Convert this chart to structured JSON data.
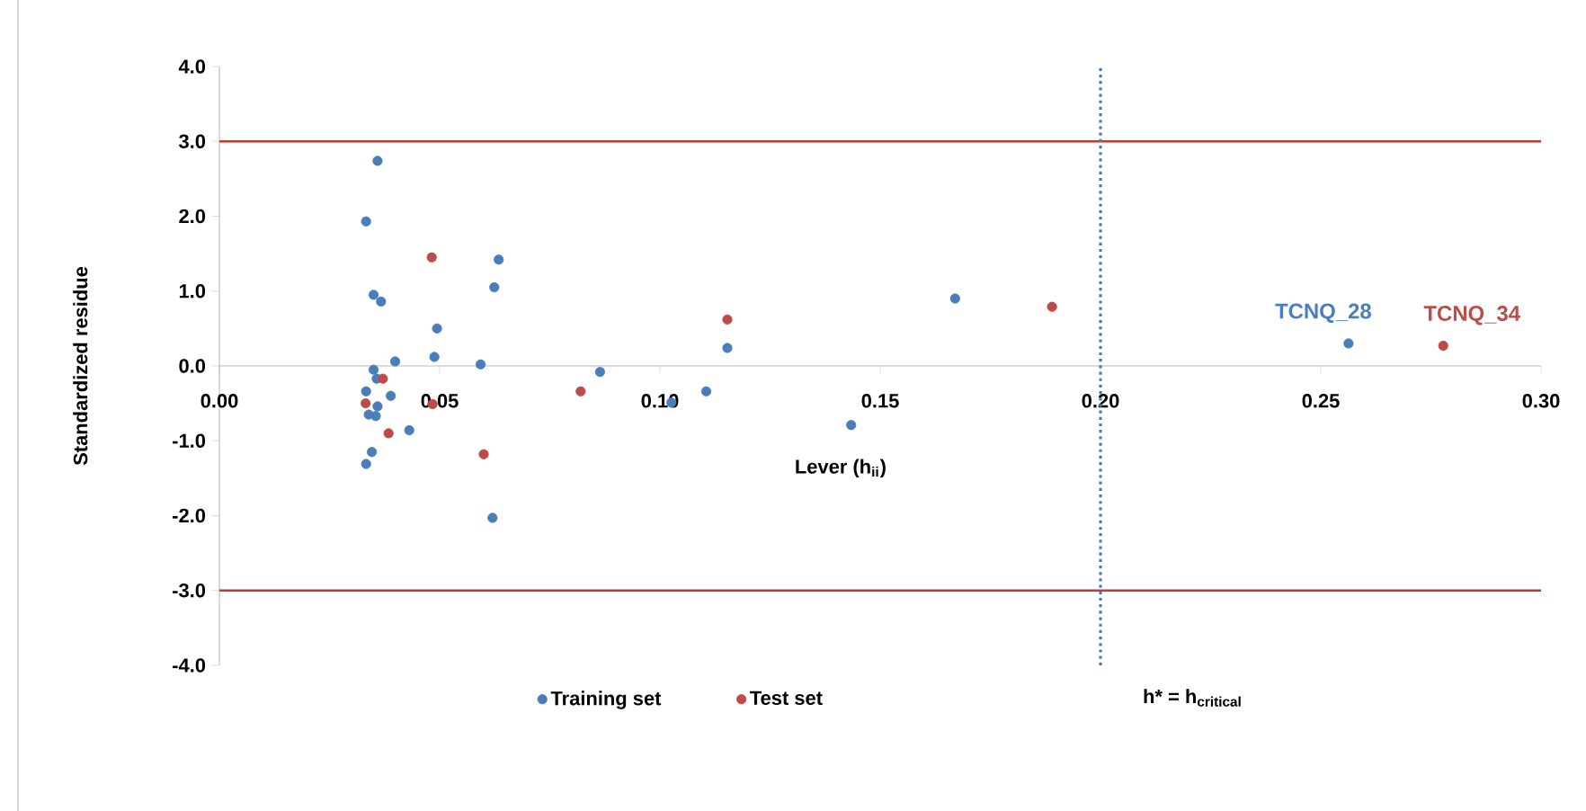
{
  "chart_data": {
    "type": "scatter",
    "xlabel": "Lever (h$_{ii}$)",
    "ylabel": "Standardized residue",
    "series": [
      {
        "name": "Training set",
        "color": "#4a7ebb",
        "x": [
          0.0359,
          0.0333,
          0.035,
          0.0367,
          0.0494,
          0.0488,
          0.0399,
          0.0593,
          0.0634,
          0.0624,
          0.035,
          0.0357,
          0.0333,
          0.0389,
          0.0359,
          0.0339,
          0.0355,
          0.0431,
          0.0346,
          0.0333,
          0.062,
          0.0864,
          0.1026,
          0.1105,
          0.1153,
          0.1434,
          0.167,
          0.2563
        ],
        "values": [
          2.74,
          1.93,
          0.95,
          0.86,
          0.5,
          0.12,
          0.06,
          0.02,
          1.42,
          1.05,
          -0.05,
          -0.17,
          -0.34,
          -0.4,
          -0.54,
          -0.65,
          -0.67,
          -0.86,
          -1.15,
          -1.31,
          -2.03,
          -0.08,
          -0.49,
          -0.34,
          0.24,
          -0.79,
          0.9,
          0.3
        ]
      },
      {
        "name": "Test set",
        "color": "#be4b48",
        "x": [
          0.0482,
          0.0371,
          0.0332,
          0.0484,
          0.0384,
          0.06,
          0.082,
          0.1153,
          0.189,
          0.2778
        ],
        "values": [
          1.45,
          -0.17,
          -0.5,
          -0.51,
          -0.9,
          -1.18,
          -0.34,
          0.62,
          0.79,
          0.27
        ]
      }
    ],
    "xlim": [
      0,
      0.3
    ],
    "xticks": [
      {
        "value": 0,
        "label": "0.00"
      },
      {
        "value": 0.05,
        "label": "0.05"
      },
      {
        "value": 0.1,
        "label": "0.10"
      },
      {
        "value": 0.15,
        "label": "0.15"
      },
      {
        "value": 0.2,
        "label": "0.20"
      },
      {
        "value": 0.25,
        "label": "0.25"
      },
      {
        "value": 0.3,
        "label": "0.30"
      }
    ],
    "ylim": [
      -4,
      4
    ],
    "yticks": [
      {
        "value": -4,
        "label": "-4.0"
      },
      {
        "value": -3,
        "label": "-3.0"
      },
      {
        "value": -2,
        "label": "-2.0"
      },
      {
        "value": -1,
        "label": "-1.0"
      },
      {
        "value": 0,
        "label": "0.0"
      },
      {
        "value": 1,
        "label": "1.0"
      },
      {
        "value": 2,
        "label": "2.0"
      },
      {
        "value": 3,
        "label": "3.0"
      },
      {
        "value": 4,
        "label": "4.0"
      }
    ],
    "ref_lines": [
      {
        "axis": "y",
        "value": 3,
        "color": "#c0392b",
        "line_style": "solid"
      },
      {
        "axis": "y",
        "value": -3,
        "color": "#c0392b",
        "line_style": "solid"
      },
      {
        "axis": "x",
        "value": 0.2,
        "color": "#4a7ebb",
        "line_style": "dotted",
        "label": "h* = h$_{critical}$"
      }
    ],
    "annotations": [
      {
        "text": "TCNQ_28",
        "x": 0.2563,
        "y": 0.3
      },
      {
        "text": "TCNQ_34",
        "x": 0.2778,
        "y": 0.27
      }
    ],
    "marker": "circle",
    "grid": false,
    "legend": "bottom"
  }
}
